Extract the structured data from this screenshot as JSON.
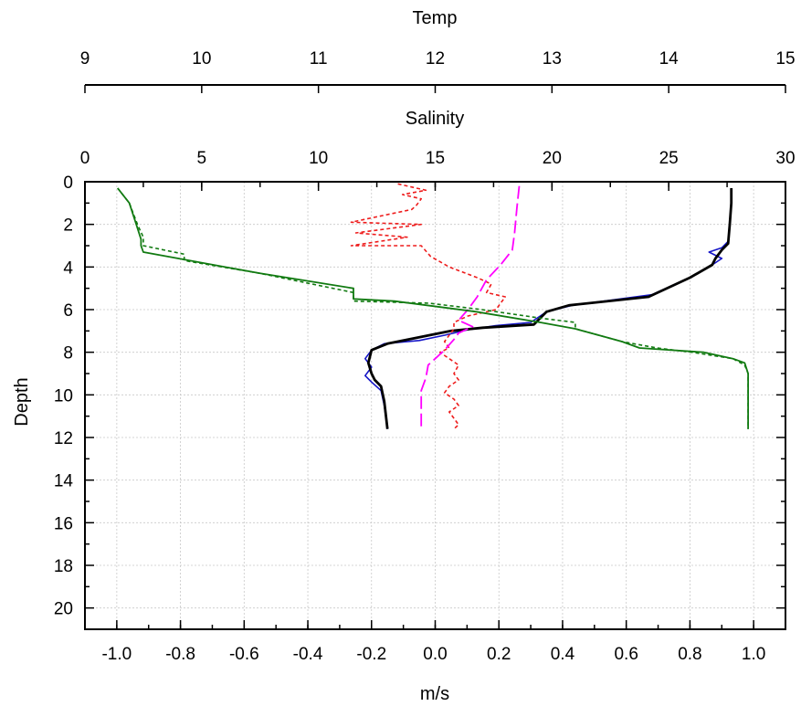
{
  "chart_data": {
    "type": "line",
    "title": "",
    "axes": {
      "y": {
        "label": "Depth",
        "lim": [
          0,
          21
        ],
        "reversed": true,
        "ticks": [
          0,
          2,
          4,
          6,
          8,
          10,
          12,
          14,
          16,
          18,
          20
        ]
      },
      "x_bottom": {
        "label": "m/s",
        "lim": [
          -1.1,
          1.1
        ],
        "ticks": [
          -1.0,
          -0.8,
          -0.6,
          -0.4,
          -0.2,
          0.0,
          0.2,
          0.4,
          0.6,
          0.8,
          1.0
        ],
        "tick_labels": [
          "-1.0",
          "-0.8",
          "-0.6",
          "-0.4",
          "-0.2",
          "0.0",
          "0.2",
          "0.4",
          "0.6",
          "0.8",
          "1.0"
        ]
      },
      "x_salinity": {
        "label": "Salinity",
        "lim": [
          0,
          30
        ],
        "ticks": [
          0,
          5,
          10,
          15,
          20,
          25,
          30
        ]
      },
      "x_temp": {
        "label": "Temp",
        "lim": [
          9,
          15
        ],
        "ticks": [
          9,
          10,
          11,
          12,
          13,
          14,
          15
        ]
      }
    },
    "grid": true,
    "legend": "none",
    "series": [
      {
        "axis": "x_bottom",
        "color": "#1515c8",
        "style": "solid",
        "width": 1.6,
        "points": [
          [
            0.93,
            0.3
          ],
          [
            0.93,
            1.0
          ],
          [
            0.925,
            2.0
          ],
          [
            0.92,
            2.8
          ],
          [
            0.9,
            3.1
          ],
          [
            0.86,
            3.3
          ],
          [
            0.9,
            3.6
          ],
          [
            0.87,
            3.9
          ],
          [
            0.8,
            4.5
          ],
          [
            0.68,
            5.3
          ],
          [
            0.43,
            5.8
          ],
          [
            0.35,
            6.1
          ],
          [
            0.32,
            6.4
          ],
          [
            0.3,
            6.6
          ],
          [
            0.19,
            6.75
          ],
          [
            0.1,
            6.95
          ],
          [
            0.03,
            7.2
          ],
          [
            -0.05,
            7.45
          ],
          [
            -0.16,
            7.6
          ],
          [
            -0.2,
            7.9
          ],
          [
            -0.22,
            8.3
          ],
          [
            -0.2,
            8.7
          ],
          [
            -0.22,
            9.1
          ],
          [
            -0.2,
            9.4
          ],
          [
            -0.17,
            9.8
          ],
          [
            -0.16,
            10.5
          ],
          [
            -0.15,
            11.6
          ]
        ]
      },
      {
        "axis": "x_bottom",
        "color": "#000000",
        "style": "solid",
        "width": 2.8,
        "points": [
          [
            0.93,
            0.3
          ],
          [
            0.93,
            1.0
          ],
          [
            0.925,
            2.0
          ],
          [
            0.92,
            2.9
          ],
          [
            0.9,
            3.2
          ],
          [
            0.88,
            3.6
          ],
          [
            0.87,
            3.9
          ],
          [
            0.8,
            4.5
          ],
          [
            0.67,
            5.4
          ],
          [
            0.42,
            5.8
          ],
          [
            0.35,
            6.1
          ],
          [
            0.33,
            6.4
          ],
          [
            0.31,
            6.7
          ],
          [
            0.15,
            6.85
          ],
          [
            0.05,
            7.0
          ],
          [
            -0.05,
            7.3
          ],
          [
            -0.15,
            7.6
          ],
          [
            -0.2,
            7.9
          ],
          [
            -0.21,
            8.5
          ],
          [
            -0.2,
            9.0
          ],
          [
            -0.19,
            9.3
          ],
          [
            -0.17,
            9.6
          ],
          [
            -0.16,
            10.3
          ],
          [
            -0.15,
            11.6
          ]
        ]
      },
      {
        "axis": "x_salinity",
        "color": "#ee1c1c",
        "style": "dotted",
        "width": 1.6,
        "points": [
          [
            13.4,
            0.1
          ],
          [
            14.6,
            0.4
          ],
          [
            13.6,
            0.6
          ],
          [
            14.4,
            0.8
          ],
          [
            14.2,
            1.1
          ],
          [
            14.0,
            1.3
          ],
          [
            11.4,
            1.9
          ],
          [
            14.4,
            2.0
          ],
          [
            11.6,
            2.4
          ],
          [
            13.8,
            2.6
          ],
          [
            11.4,
            3.0
          ],
          [
            14.4,
            3.0
          ],
          [
            14.8,
            3.5
          ],
          [
            15.6,
            4.0
          ],
          [
            16.8,
            4.5
          ],
          [
            17.4,
            4.8
          ],
          [
            17.2,
            5.2
          ],
          [
            18.0,
            5.4
          ],
          [
            17.6,
            6.0
          ],
          [
            16.4,
            6.3
          ],
          [
            15.8,
            6.6
          ],
          [
            15.8,
            6.9
          ],
          [
            15.6,
            7.2
          ],
          [
            15.4,
            7.5
          ],
          [
            15.6,
            7.8
          ],
          [
            15.2,
            8.0
          ],
          [
            15.6,
            8.3
          ],
          [
            16.0,
            8.6
          ],
          [
            15.8,
            9.0
          ],
          [
            16.0,
            9.3
          ],
          [
            15.6,
            9.6
          ],
          [
            15.4,
            9.9
          ],
          [
            15.8,
            10.2
          ],
          [
            16.0,
            10.5
          ],
          [
            15.6,
            10.8
          ],
          [
            15.8,
            11.1
          ],
          [
            16.0,
            11.4
          ],
          [
            15.8,
            11.6
          ]
        ]
      },
      {
        "axis": "x_salinity",
        "color": "#ff00ff",
        "style": "dashed",
        "width": 1.8,
        "points": [
          [
            18.6,
            0.2
          ],
          [
            18.5,
            1.2
          ],
          [
            18.4,
            2.4
          ],
          [
            18.3,
            3.2
          ],
          [
            17.8,
            3.9
          ],
          [
            17.2,
            4.6
          ],
          [
            16.8,
            5.4
          ],
          [
            16.4,
            6.0
          ],
          [
            16.0,
            6.5
          ],
          [
            16.6,
            6.8
          ],
          [
            16.0,
            7.1
          ],
          [
            15.8,
            7.4
          ],
          [
            15.4,
            7.9
          ],
          [
            15.0,
            8.3
          ],
          [
            14.7,
            8.6
          ],
          [
            14.6,
            9.2
          ],
          [
            14.4,
            9.8
          ],
          [
            14.4,
            10.5
          ],
          [
            14.4,
            11.6
          ]
        ]
      },
      {
        "axis": "x_temp",
        "color": "#117a11",
        "style": "dotted",
        "width": 1.6,
        "points": [
          [
            9.28,
            0.3
          ],
          [
            9.38,
            1.0
          ],
          [
            9.45,
            2.0
          ],
          [
            9.5,
            2.6
          ],
          [
            9.5,
            3.0
          ],
          [
            9.85,
            3.4
          ],
          [
            9.85,
            3.7
          ],
          [
            10.5,
            4.3
          ],
          [
            11.3,
            5.2
          ],
          [
            11.3,
            5.6
          ],
          [
            11.95,
            5.7
          ],
          [
            12.4,
            6.0
          ],
          [
            12.9,
            6.4
          ],
          [
            13.2,
            6.6
          ],
          [
            13.2,
            6.9
          ],
          [
            13.4,
            7.2
          ],
          [
            13.6,
            7.5
          ],
          [
            13.9,
            7.8
          ],
          [
            14.2,
            8.0
          ],
          [
            14.55,
            8.3
          ],
          [
            14.65,
            8.6
          ],
          [
            14.68,
            9.0
          ],
          [
            14.68,
            11.6
          ]
        ]
      },
      {
        "axis": "x_temp",
        "color": "#117a11",
        "style": "solid",
        "width": 1.8,
        "points": [
          [
            9.28,
            0.3
          ],
          [
            9.38,
            1.0
          ],
          [
            9.44,
            2.0
          ],
          [
            9.48,
            2.7
          ],
          [
            9.48,
            3.0
          ],
          [
            9.5,
            3.3
          ],
          [
            9.8,
            3.6
          ],
          [
            10.5,
            4.3
          ],
          [
            11.3,
            5.0
          ],
          [
            11.3,
            5.5
          ],
          [
            11.65,
            5.6
          ],
          [
            12.35,
            6.1
          ],
          [
            12.9,
            6.6
          ],
          [
            13.2,
            6.9
          ],
          [
            13.4,
            7.2
          ],
          [
            13.6,
            7.5
          ],
          [
            13.75,
            7.8
          ],
          [
            14.3,
            8.0
          ],
          [
            14.55,
            8.3
          ],
          [
            14.65,
            8.5
          ],
          [
            14.68,
            9.0
          ],
          [
            14.68,
            11.6
          ]
        ]
      }
    ]
  }
}
